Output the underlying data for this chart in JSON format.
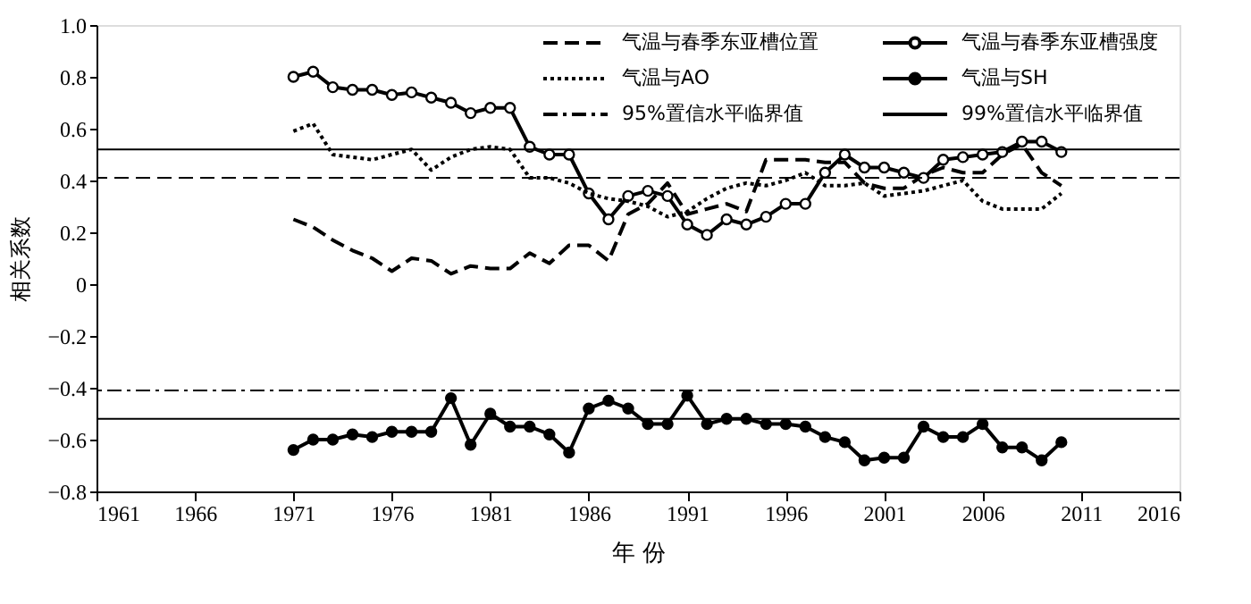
{
  "chart_data": {
    "type": "line",
    "xlabel": "年 份",
    "ylabel": "相关系数",
    "xlim": [
      1961,
      2016
    ],
    "xticks": [
      1961,
      1966,
      1971,
      1976,
      1981,
      1986,
      1991,
      1996,
      2001,
      2006,
      2011,
      2016
    ],
    "ylim": [
      -0.8,
      1.0
    ],
    "yticks": [
      {
        "value": -0.8,
        "label": "−0.8"
      },
      {
        "value": -0.6,
        "label": "−0.6"
      },
      {
        "value": -0.4,
        "label": "−0.4"
      },
      {
        "value": -0.2,
        "label": "−0.2"
      },
      0,
      0.2,
      0.4,
      0.6,
      0.8,
      {
        "value": 1.0,
        "label": "1.0"
      }
    ],
    "x": [
      1971,
      1972,
      1973,
      1974,
      1975,
      1976,
      1977,
      1978,
      1979,
      1980,
      1981,
      1982,
      1983,
      1984,
      1985,
      1986,
      1987,
      1988,
      1989,
      1990,
      1991,
      1992,
      1993,
      1994,
      1995,
      1996,
      1997,
      1998,
      1999,
      2000,
      2001,
      2002,
      2003,
      2004,
      2005,
      2006,
      2007,
      2008,
      2009,
      2010
    ],
    "grid": false,
    "legend": "top right",
    "series": [
      {
        "name": "气温与春季东亚槽位置",
        "color": "#000000",
        "line_style": "dashed",
        "marker": "none",
        "values": [
          0.25,
          0.22,
          0.17,
          0.13,
          0.1,
          0.05,
          0.1,
          0.09,
          0.04,
          0.07,
          0.06,
          0.06,
          0.12,
          0.08,
          0.15,
          0.15,
          0.09,
          0.27,
          0.31,
          0.39,
          0.27,
          0.29,
          0.31,
          0.28,
          0.48,
          0.48,
          0.48,
          0.47,
          0.47,
          0.39,
          0.37,
          0.37,
          0.42,
          0.45,
          0.43,
          0.43,
          0.5,
          0.54,
          0.43,
          0.38
        ]
      },
      {
        "name": "气温与春季东亚槽强度",
        "color": "#000000",
        "line_style": "solid",
        "marker": "circle",
        "values": [
          0.8,
          0.82,
          0.76,
          0.75,
          0.75,
          0.73,
          0.74,
          0.72,
          0.7,
          0.66,
          0.68,
          0.68,
          0.53,
          0.5,
          0.5,
          0.35,
          0.25,
          0.34,
          0.36,
          0.34,
          0.23,
          0.19,
          0.25,
          0.23,
          0.26,
          0.31,
          0.31,
          0.43,
          0.5,
          0.45,
          0.45,
          0.43,
          0.41,
          0.48,
          0.49,
          0.5,
          0.51,
          0.55,
          0.55,
          0.51
        ]
      },
      {
        "name": "气温与AO",
        "color": "#000000",
        "line_style": "dotted",
        "marker": "none",
        "values": [
          0.59,
          0.62,
          0.5,
          0.49,
          0.48,
          0.5,
          0.52,
          0.44,
          0.49,
          0.52,
          0.53,
          0.52,
          0.41,
          0.41,
          0.39,
          0.35,
          0.33,
          0.32,
          0.3,
          0.26,
          0.28,
          0.33,
          0.37,
          0.39,
          0.38,
          0.4,
          0.43,
          0.38,
          0.38,
          0.39,
          0.34,
          0.35,
          0.36,
          0.38,
          0.4,
          0.32,
          0.29,
          0.29,
          0.29,
          0.35
        ]
      },
      {
        "name": "气温与SH",
        "color": "#000000",
        "line_style": "solid",
        "marker": "circle",
        "values": [
          -0.64,
          -0.6,
          -0.6,
          -0.58,
          -0.59,
          -0.57,
          -0.57,
          -0.57,
          -0.44,
          -0.62,
          -0.5,
          -0.55,
          -0.55,
          -0.58,
          -0.65,
          -0.48,
          -0.45,
          -0.48,
          -0.54,
          -0.54,
          -0.43,
          -0.54,
          -0.52,
          -0.52,
          -0.54,
          -0.54,
          -0.55,
          -0.59,
          -0.61,
          -0.68,
          -0.67,
          -0.67,
          -0.55,
          -0.59,
          -0.59,
          -0.54,
          -0.63,
          -0.63,
          -0.68,
          -0.61
        ]
      }
    ],
    "ref_lines": [
      {
        "axis": "y",
        "value": -0.41,
        "label": "95%置信水平临界值",
        "line_style": "dashdot",
        "color": "#000000"
      },
      {
        "axis": "y",
        "value": -0.52,
        "label": "99%置信水平临界值",
        "line_style": "solid",
        "color": "#000000"
      },
      {
        "axis": "y",
        "value": 0.41,
        "label": null,
        "line_style": "dashed",
        "color": "#000000"
      },
      {
        "axis": "y",
        "value": 0.52,
        "label": null,
        "line_style": "solid",
        "color": "#000000"
      }
    ]
  }
}
